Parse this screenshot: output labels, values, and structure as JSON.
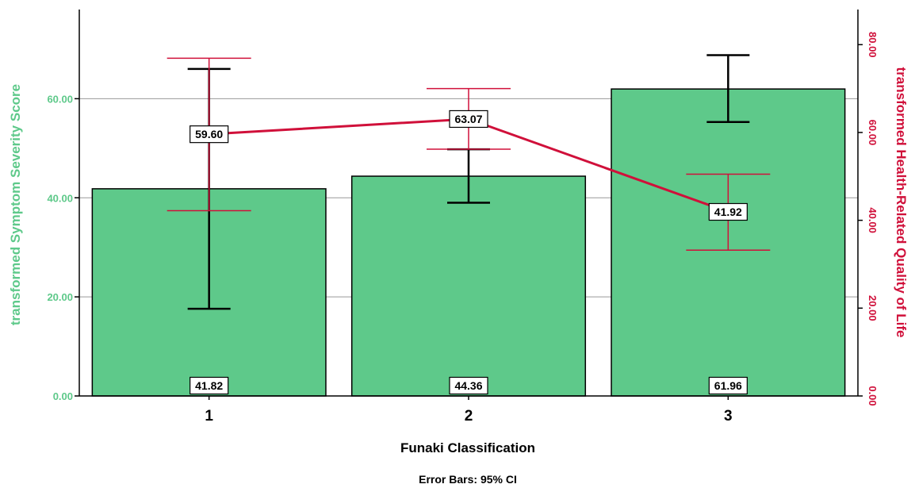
{
  "chart_data": {
    "type": "bar",
    "categories": [
      "1",
      "2",
      "3"
    ],
    "xlabel": "Funaki Classification",
    "footnote": "Error Bars: 95% CI",
    "ylabel_left": "transformed Symptom Severity Score",
    "ylabel_right": "transformed Health-Related Quality of Life",
    "ylim_left": [
      0,
      78
    ],
    "ylim_right": [
      0,
      88
    ],
    "yticks_left": [
      "0.00",
      "20.00",
      "40.00",
      "60.00"
    ],
    "yticks_right": [
      "0.00",
      "20.00",
      "40.00",
      "60.00",
      "80.00"
    ],
    "grid": true,
    "series": [
      {
        "name": "transformed Symptom Severity Score",
        "kind": "bar",
        "axis": "left",
        "values": [
          41.82,
          44.36,
          61.96
        ],
        "labels": [
          "41.82",
          "44.36",
          "61.96"
        ],
        "ci_low": [
          17.6,
          39.0,
          55.3
        ],
        "ci_high": [
          66.0,
          49.8,
          68.8
        ]
      },
      {
        "name": "transformed Health-Related Quality of Life",
        "kind": "line",
        "axis": "right",
        "values": [
          59.6,
          63.07,
          41.92
        ],
        "labels": [
          "59.60",
          "63.07",
          "41.92"
        ],
        "ci_low": [
          42.2,
          56.2,
          33.2
        ],
        "ci_high": [
          76.9,
          70.0,
          50.5
        ]
      }
    ],
    "colors": {
      "bar_fill": "#5ec98a",
      "left_axis": "#5ec98a",
      "right_axis": "#d0103a",
      "line": "#d0103a",
      "bar_error": "#000000",
      "grid": "#999999"
    }
  }
}
